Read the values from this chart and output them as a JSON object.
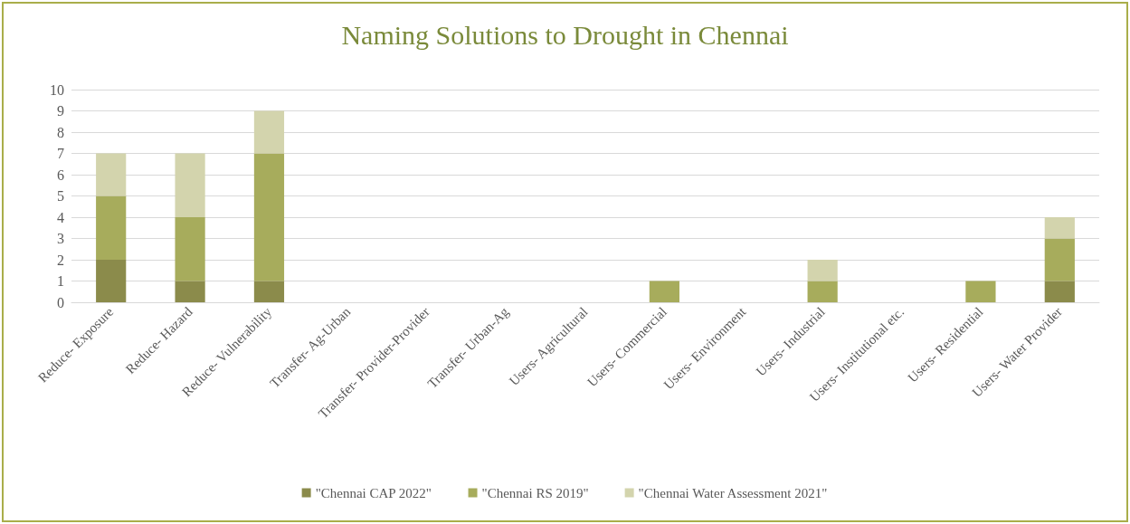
{
  "chart_data": {
    "type": "bar",
    "title": "Naming Solutions to Drought in Chennai",
    "categories": [
      "Reduce- Exposure",
      "Reduce- Hazard",
      "Reduce- Vulnerability",
      "Transfer- Ag-Urban",
      "Transfer- Provider-Provider",
      "Transfer- Urban-Ag",
      "Users- Agricultural",
      "Users- Commercial",
      "Users- Environment",
      "Users- Industrial",
      "Users- Institutional etc.",
      "Users- Residential",
      "Users- Water Provider"
    ],
    "series": [
      {
        "name": "\"Chennai CAP 2022\"",
        "color": "#8b8b4b",
        "values": [
          2,
          1,
          1,
          0,
          0,
          0,
          0,
          0,
          0,
          0,
          0,
          0,
          1
        ]
      },
      {
        "name": "\"Chennai RS 2019\"",
        "color": "#a7ac5c",
        "values": [
          3,
          3,
          6,
          0,
          0,
          0,
          0,
          1,
          0,
          1,
          0,
          1,
          2
        ]
      },
      {
        "name": "\"Chennai Water Assessment 2021\"",
        "color": "#d3d4ad",
        "values": [
          2,
          3,
          2,
          0,
          0,
          0,
          0,
          0,
          0,
          1,
          0,
          0,
          1
        ]
      }
    ],
    "stacked": true,
    "ylim": [
      0,
      10
    ],
    "yticks": [
      0,
      1,
      2,
      3,
      4,
      5,
      6,
      7,
      8,
      9,
      10
    ],
    "grid": "y",
    "legend": "bottom"
  }
}
